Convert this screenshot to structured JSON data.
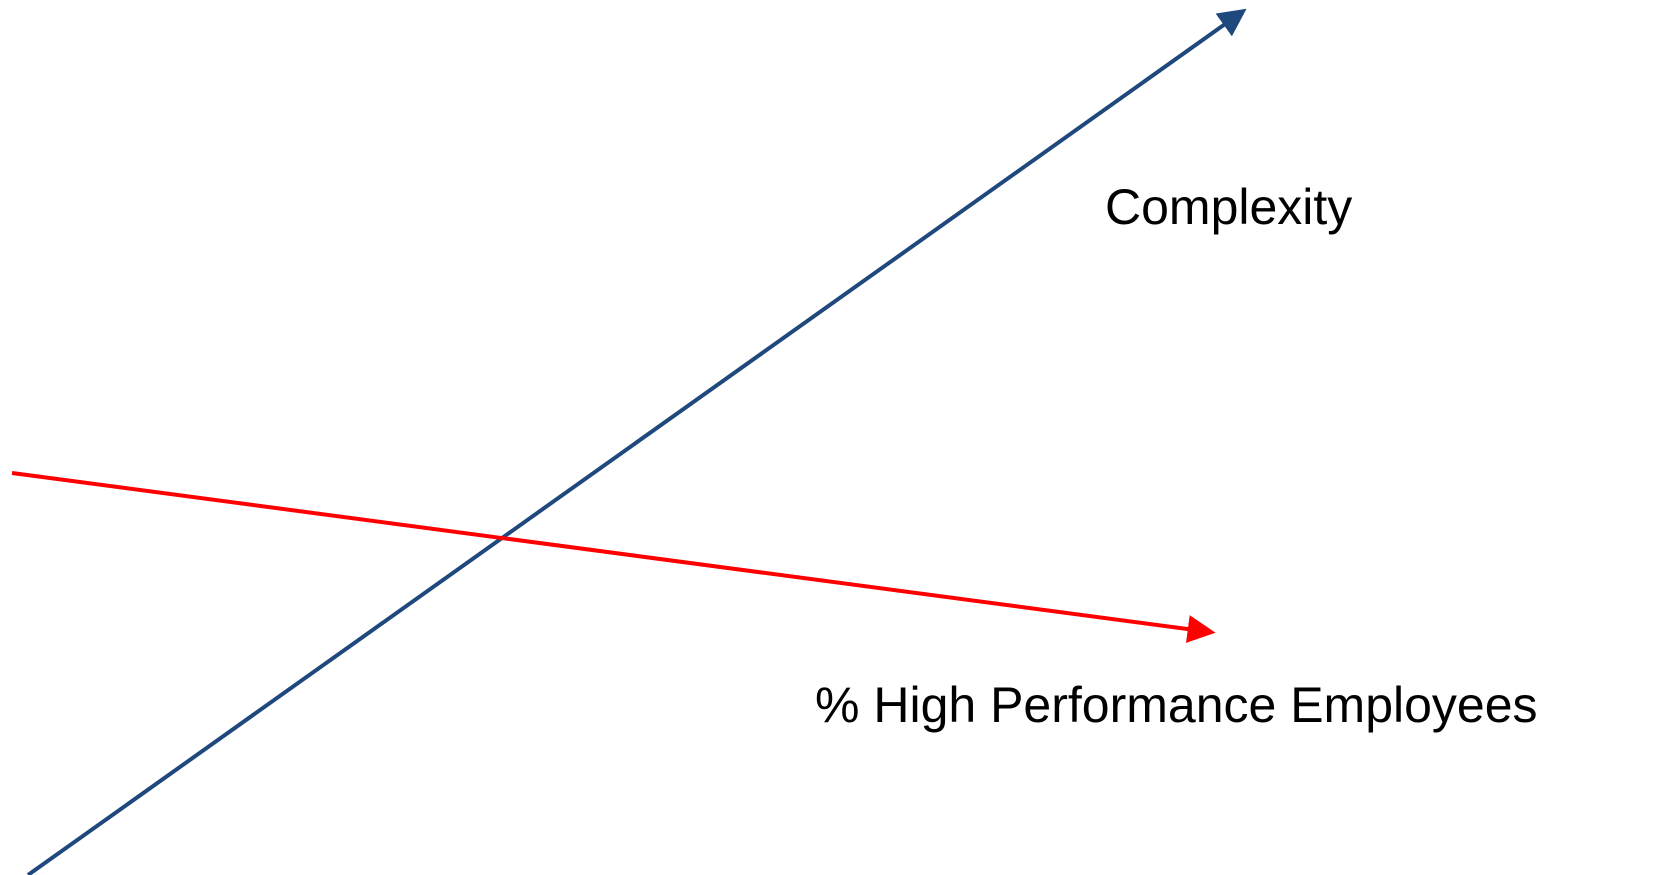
{
  "diagram": {
    "labels": {
      "complexity": "Complexity",
      "high_performance": "% High Performance Employees"
    },
    "colors": {
      "complexity_line": "#1F497D",
      "high_performance_line": "#FF0000",
      "background": "#FFFFFF",
      "text": "#000000"
    },
    "trends": {
      "complexity": "increasing",
      "high_performance": "decreasing"
    }
  }
}
